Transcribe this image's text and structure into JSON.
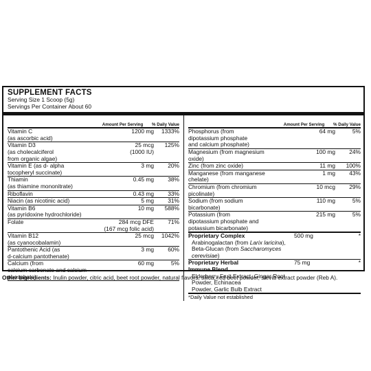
{
  "title": "SUPPLEMENT FACTS",
  "serving_size": "Serving Size 1 Scoop (5g)",
  "servings_per_container": "Servings Per Container About 60",
  "header": {
    "amount": "Amount Per Serving",
    "dv": "% Daily Value"
  },
  "left_rows": [
    {
      "name": "Vitamin C",
      "name2": "(as ascorbic acid)",
      "amount": "1200 mg",
      "amount2": "",
      "dv": "1333%"
    },
    {
      "name": "Vitamin D3",
      "name2": "(as cholecalciferol",
      "name3": "from organic algae)",
      "amount": "25 mcg",
      "amount2": "(1000 IU)",
      "dv": "125%"
    },
    {
      "name": "Vitamin E (as d- alpha",
      "name2": "tocopheryl succinate)",
      "amount": "3 mg",
      "amount2": "",
      "dv": "20%"
    },
    {
      "name": "Thiamin",
      "name2": "(as thiamine mononitrate)",
      "amount": "0.45 mg",
      "amount2": "",
      "dv": "38%"
    },
    {
      "name": "Riboflavin",
      "amount": "0.43 mg",
      "dv": "33%"
    },
    {
      "name": "Niacin (as nicotinic acid)",
      "amount": "5 mg",
      "dv": "31%"
    },
    {
      "name": "Vitamin B6",
      "name2": "(as pyridoxine hydrochloride)",
      "amount": "10 mg",
      "amount2": "",
      "dv": "588%"
    },
    {
      "name": "Folate",
      "name2": "",
      "amount": "284 mcg DFE",
      "amount2": "(167 mcg folic acid)",
      "dv": "71%"
    },
    {
      "name": "Vitamin B12",
      "name2": "(as cyanocobalamin)",
      "amount": "25 mcg",
      "amount2": "",
      "dv": "1042%"
    },
    {
      "name": "Pantothenic Acid (as",
      "name2": "d-calcium pantothenate)",
      "amount": "3 mg",
      "amount2": "",
      "dv": "60%"
    },
    {
      "name": "Calcium (from",
      "name2": "calcium carbonate and calcium phosphate)",
      "amount": "60 mg",
      "amount2": "",
      "dv": "5%"
    }
  ],
  "right_rows": [
    {
      "name": "Phosphorus (from",
      "name2": "dipotassium phosphate",
      "name3": "and calcium phosphate)",
      "amount": "64 mg",
      "dv": "5%"
    },
    {
      "name": "Magnesium (from magnesium oxide)",
      "amount": "100 mg",
      "dv": "24%"
    },
    {
      "name": "Zinc (from zinc oxide)",
      "amount": "11 mg",
      "dv": "100%"
    },
    {
      "name": "Manganese (from manganese chelate)",
      "amount": "1 mg",
      "dv": "43%"
    },
    {
      "name": "Chromium (from chromium picolinate)",
      "amount": "10 mcg",
      "dv": "29%"
    },
    {
      "name": "Sodium (from sodium bicarbonate)",
      "amount": "110 mg",
      "dv": "5%"
    },
    {
      "name": "Potassium (from",
      "name2": "dipotassium phosphate and",
      "name3": "potassium bicarbonate)",
      "amount": "215 mg",
      "dv": "5%"
    }
  ],
  "complex": {
    "title": "Proprietary  Complex",
    "amount": "500 mg",
    "dv": "*",
    "line1_a": "Arabinogalactan (from ",
    "line1_i": "Larix laricina",
    "line1_b": "),",
    "line2_a": "Beta-Glucan (from ",
    "line2_i": "Saccharomyces cerevisiae",
    "line2_b": ")"
  },
  "herbal": {
    "title": "Proprietary Herbal",
    "title2": "Immune Blend",
    "amount": "75 mg",
    "dv": "*",
    "line1": "Elderberry Fruit Extract, Ginger Root Powder, Echinacea",
    "line2": "Powder, Garlic Bulb Extract"
  },
  "footnote": "*Daily Value not established",
  "other_label": "Other Ingredients:",
  "other_text": " Inulin powder, citric acid, beet root powder, natural flavors, silica, red beet powder, stevia extract powder (Reb A)."
}
